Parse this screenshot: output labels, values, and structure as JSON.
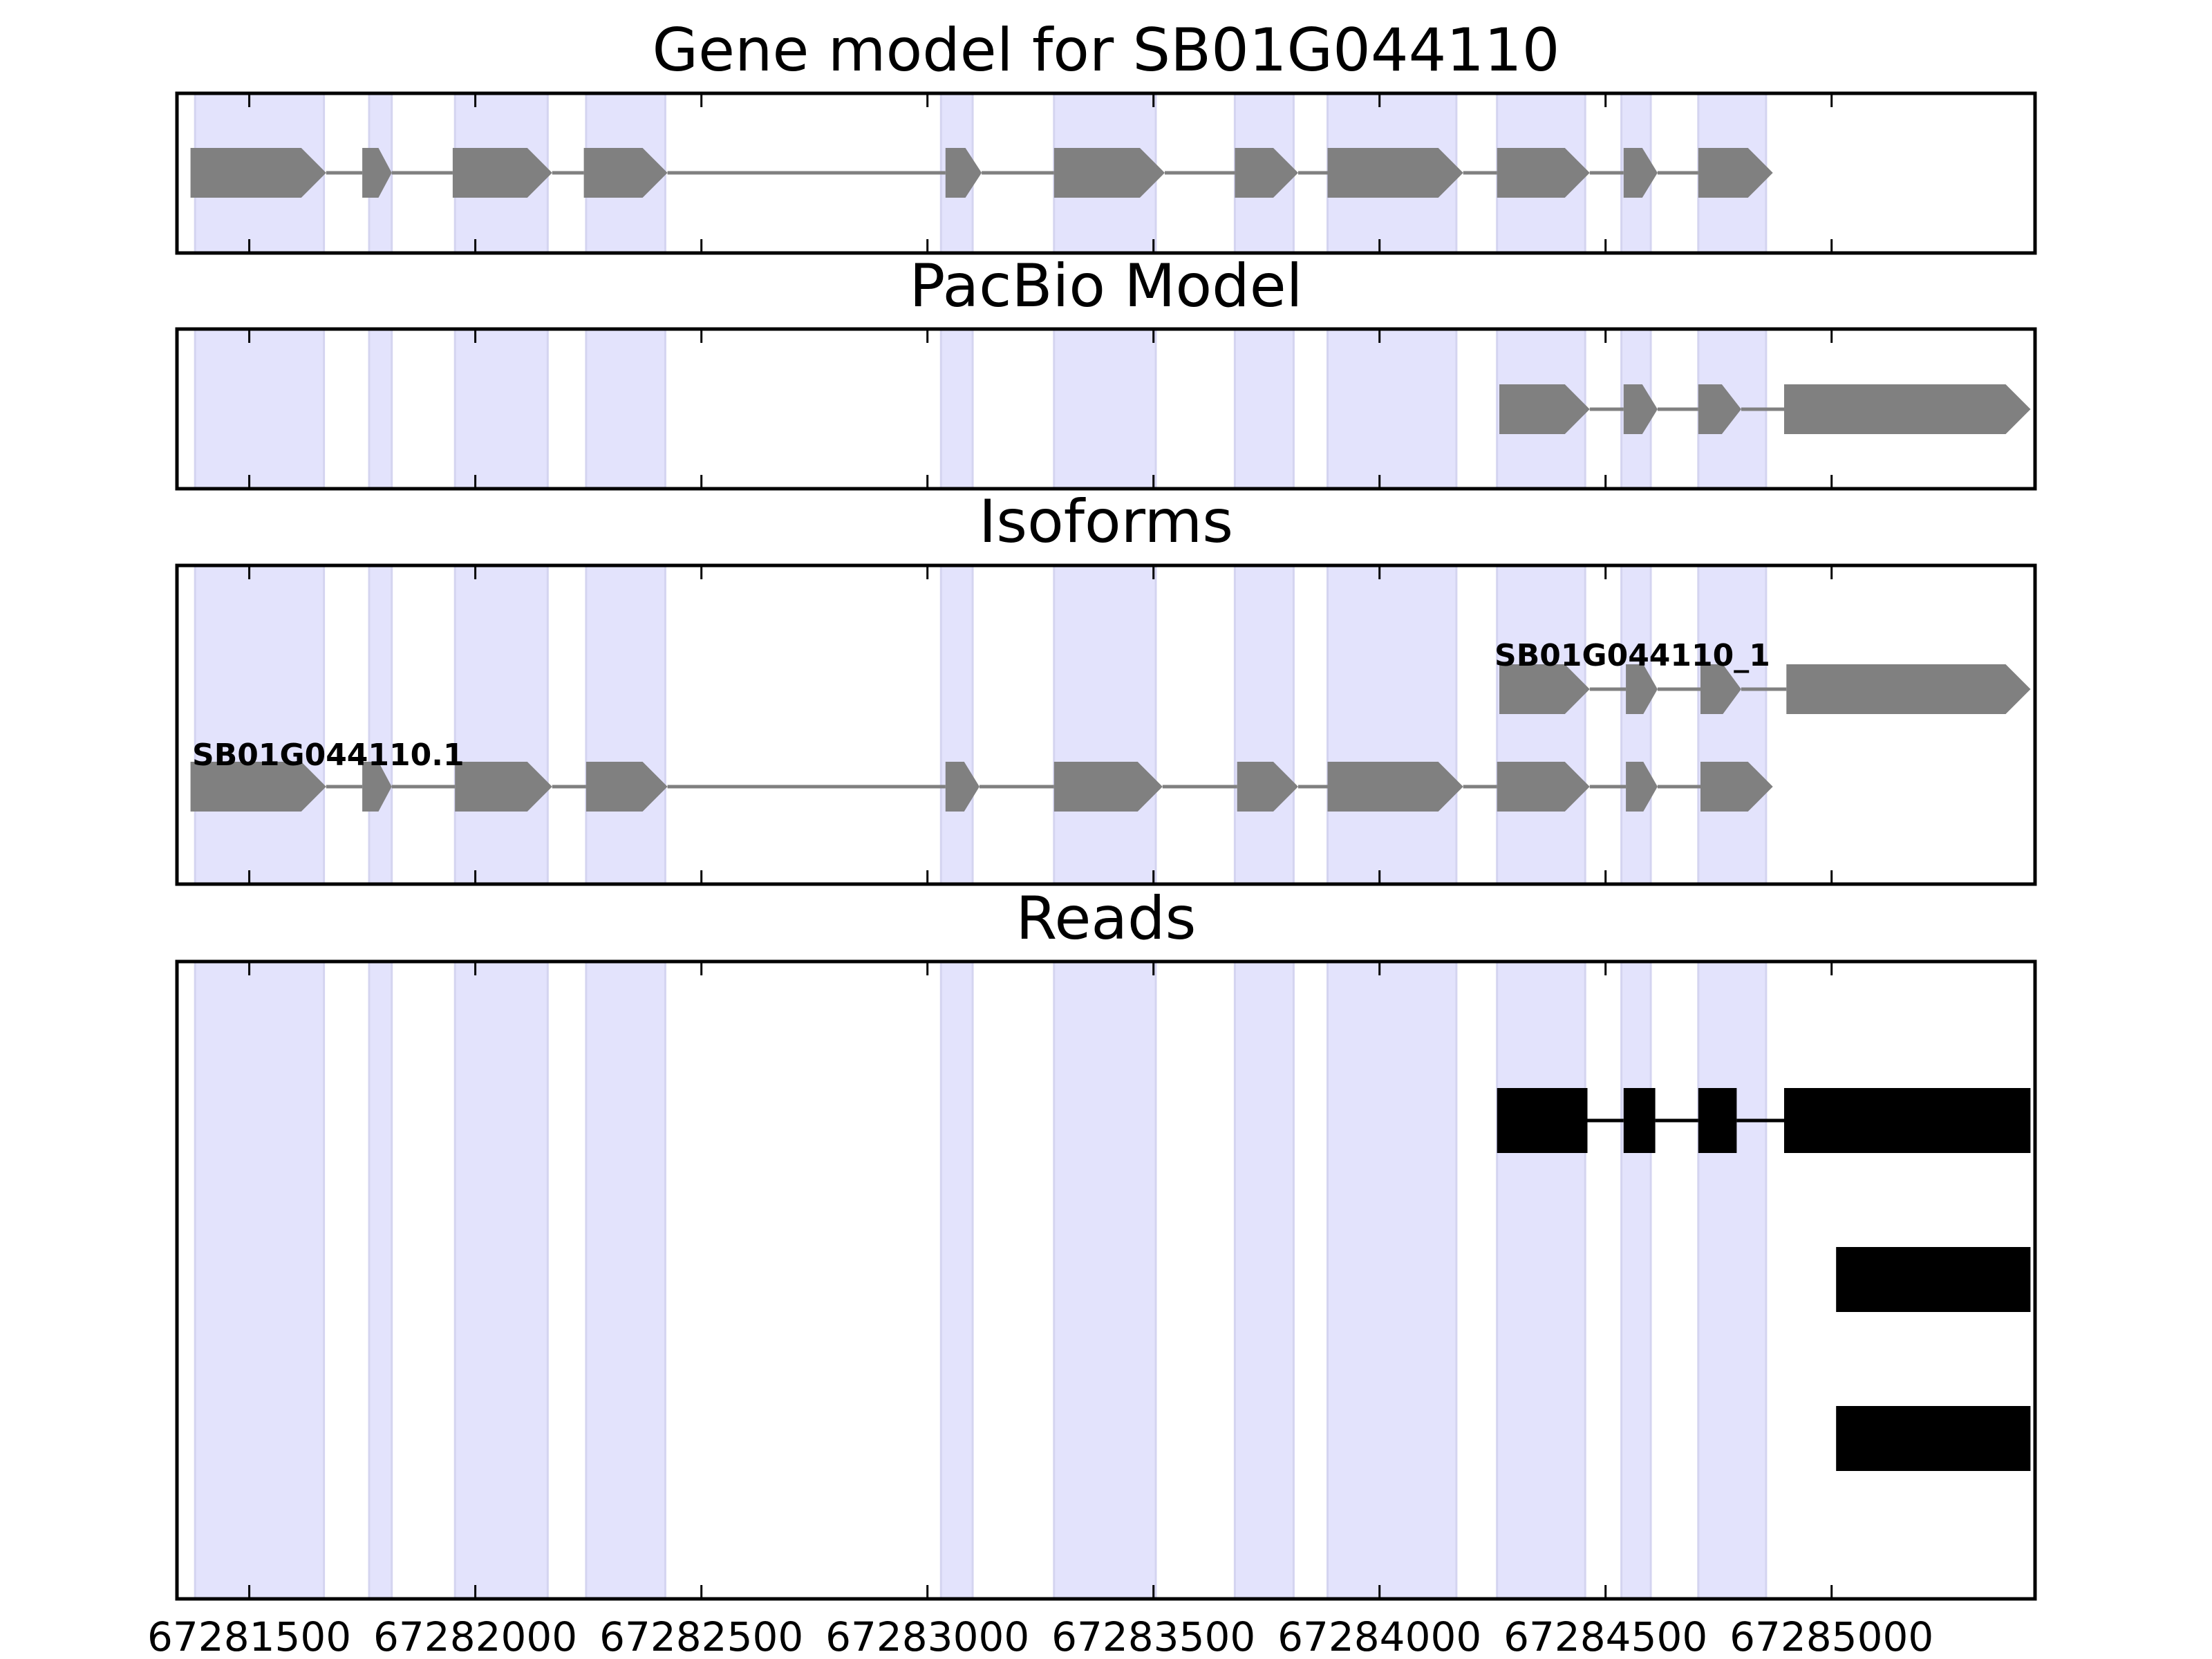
{
  "chart_data": {
    "type": "gene-model-track",
    "x_range": [
      67281340,
      67285450
    ],
    "x_ticks": [
      67281500,
      67282000,
      67282500,
      67283000,
      67283500,
      67284000,
      67284500,
      67285000
    ],
    "x_tick_labels": [
      "67281500",
      "67282000",
      "67282500",
      "67283000",
      "67283500",
      "67284000",
      "67284500",
      "67285000"
    ],
    "colors": {
      "exon_highlight": "#e3e3fc",
      "gene_feature": "#808080",
      "read": "#000000",
      "frame": "#000000"
    },
    "exon_regions": [
      [
        67281380,
        67281665
      ],
      [
        67281765,
        67281815
      ],
      [
        67281955,
        67282160
      ],
      [
        67282245,
        67282420
      ],
      [
        67283030,
        67283100
      ],
      [
        67283280,
        67283505
      ],
      [
        67283680,
        67283810
      ],
      [
        67283885,
        67284170
      ],
      [
        67284260,
        67284455
      ],
      [
        67284535,
        67284600
      ],
      [
        67284705,
        67284855
      ]
    ],
    "panels": [
      {
        "title": "Gene model for SB01G044110",
        "tracks": [
          {
            "label": "",
            "level": 0,
            "strand": "+",
            "exons": [
              [
                67281370,
                67281670
              ],
              [
                67281750,
                67281815
              ],
              [
                67281950,
                67282170
              ],
              [
                67282240,
                67282425
              ],
              [
                67283040,
                67283120
              ],
              [
                67283280,
                67283525
              ],
              [
                67283680,
                67283820
              ],
              [
                67283885,
                67284185
              ],
              [
                67284260,
                67284465
              ],
              [
                67284540,
                67284615
              ],
              [
                67284705,
                67284870
              ]
            ]
          }
        ]
      },
      {
        "title": "PacBio Model",
        "tracks": [
          {
            "label": "",
            "level": 0,
            "strand": "+",
            "exons": [
              [
                67284265,
                67284465
              ],
              [
                67284540,
                67284615
              ],
              [
                67284705,
                67284800
              ],
              [
                67284895,
                67285440
              ]
            ]
          }
        ]
      },
      {
        "title": "Isoforms",
        "tracks": [
          {
            "label": "SB01G044110_1",
            "level": 1,
            "strand": "+",
            "exons": [
              [
                67284265,
                67284465
              ],
              [
                67284545,
                67284615
              ],
              [
                67284710,
                67284800
              ],
              [
                67284900,
                67285440
              ]
            ]
          },
          {
            "label": "SB01G044110.1",
            "level": 0,
            "strand": "+",
            "exons": [
              [
                67281370,
                67281670
              ],
              [
                67281750,
                67281815
              ],
              [
                67281955,
                67282170
              ],
              [
                67282245,
                67282425
              ],
              [
                67283040,
                67283115
              ],
              [
                67283280,
                67283520
              ],
              [
                67283685,
                67283820
              ],
              [
                67283885,
                67284185
              ],
              [
                67284260,
                67284465
              ],
              [
                67284545,
                67284615
              ],
              [
                67284710,
                67284870
              ]
            ]
          }
        ]
      },
      {
        "title": "Reads",
        "reads": [
          {
            "exons": [
              [
                67284260,
                67284460
              ],
              [
                67284540,
                67284610
              ],
              [
                67284705,
                67284790
              ],
              [
                67284895,
                67285440
              ]
            ]
          },
          {
            "exons": [
              [
                67285010,
                67285440
              ]
            ]
          },
          {
            "exons": [
              [
                67285010,
                67285440
              ]
            ]
          }
        ]
      }
    ]
  }
}
